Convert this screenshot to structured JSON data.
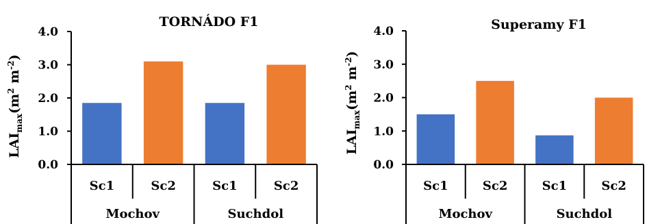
{
  "chart_data": [
    {
      "type": "bar",
      "title": "TORNÁDO F1",
      "ylabel": {
        "base": "LAI",
        "sub": "max",
        "open": "(m",
        "sup1": "2",
        "mid": " m",
        "sup2": "-2",
        "close": ")"
      },
      "ylim": [
        0,
        4
      ],
      "yticks": [
        "0.0",
        "1.0",
        "2.0",
        "3.0",
        "4.0"
      ],
      "categories": [
        "Sc1",
        "Sc2",
        "Sc1",
        "Sc2"
      ],
      "groups": [
        "Mochov",
        "Suchdol"
      ],
      "values": [
        1.85,
        3.1,
        1.85,
        3.0
      ],
      "colors": [
        "#4472c4",
        "#ed7d31",
        "#4472c4",
        "#ed7d31"
      ],
      "grid": false,
      "legend": "none"
    },
    {
      "type": "bar",
      "title": "Superamy F1",
      "ylabel": {
        "base": "LAI",
        "sub": "max",
        "open": "(m",
        "sup1": "2",
        "mid": " m",
        "sup2": "-2",
        "close": ")"
      },
      "ylim": [
        0,
        4
      ],
      "yticks": [
        "0.0",
        "1.0",
        "2.0",
        "3.0",
        "4.0"
      ],
      "categories": [
        "Sc1",
        "Sc2",
        "Sc1",
        "Sc2"
      ],
      "groups": [
        "Mochov",
        "Suchdol"
      ],
      "values": [
        1.5,
        2.5,
        0.87,
        2.0
      ],
      "colors": [
        "#4472c4",
        "#ed7d31",
        "#4472c4",
        "#ed7d31"
      ],
      "grid": false,
      "legend": "none"
    }
  ]
}
